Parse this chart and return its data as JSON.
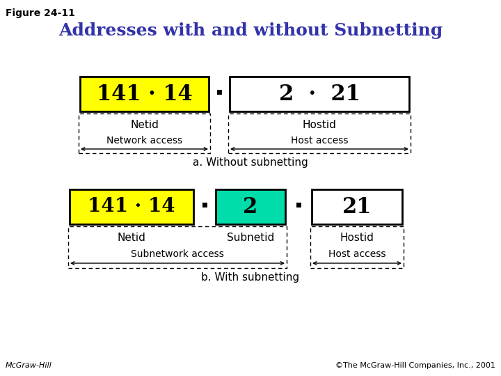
{
  "figure_label": "Figure 24-11",
  "title": "Addresses with and without Subnetting",
  "title_color": "#3333AA",
  "title_fontsize": 18,
  "bg_color": "#FFFFFF",
  "figure_label_fontsize": 10,
  "copyright": "©The McGraw-Hill Companies, Inc., 2001",
  "mcgrawhill": "McGraw-Hill",
  "footer_fontsize": 8,
  "diagram_a_label": "a. Without subnetting",
  "diagram_b_label": "b. With subnetting",
  "yellow_color": "#FFFF00",
  "cyan_color": "#00DDAA",
  "white_color": "#FFFFFF",
  "box_a_netid_text": "141 · 14",
  "box_a_hostid_text": "2  ·  21",
  "box_a_netid_label": "Netid",
  "box_a_hostid_label": "Hostid",
  "box_a_net_access": "Network access",
  "box_a_host_access": "Host access",
  "box_b_netid_text": "141 · 14",
  "box_b_subnetid_text": "2",
  "box_b_hostid_text": "21",
  "box_b_netid_label": "Netid",
  "box_b_subnetid_label": "Subnetid",
  "box_b_hostid_label": "Hostid",
  "box_b_subnet_access": "Subnetwork access",
  "box_b_host_access": "Host access"
}
